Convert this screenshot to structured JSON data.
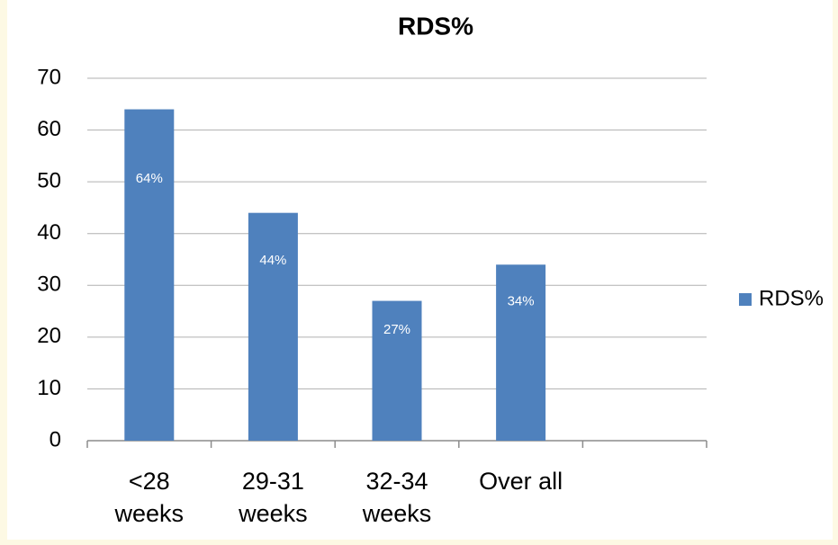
{
  "chart_data": {
    "type": "bar",
    "title": "RDS%",
    "categories": [
      "<28 weeks",
      "29-31 weeks",
      "32-34 weeks",
      "Over all",
      null
    ],
    "series": [
      {
        "name": "RDS%",
        "color": "#4f81bd",
        "values": [
          64,
          44,
          27,
          34,
          null
        ],
        "value_labels": [
          "64%",
          "44%",
          "27%",
          "34%",
          null
        ]
      }
    ],
    "ylim": [
      0,
      70
    ],
    "yticks": [
      0,
      10,
      20,
      30,
      40,
      50,
      60,
      70
    ],
    "grid": true,
    "legend": "right"
  }
}
